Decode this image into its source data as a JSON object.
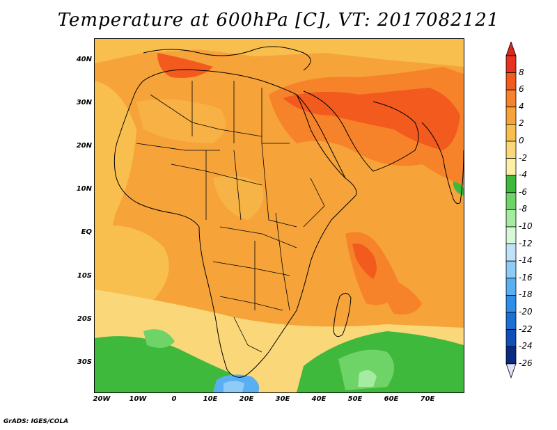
{
  "title": "Temperature at 600hPa [C], VT: 2017082121",
  "credit": "GrADS: IGES/COLA",
  "lat_labels": [
    "40N",
    "30N",
    "20N",
    "10N",
    "EQ",
    "10S",
    "20S",
    "30S"
  ],
  "lon_labels": [
    "20W",
    "10W",
    "0",
    "10E",
    "20E",
    "30E",
    "40E",
    "50E",
    "60E",
    "70E"
  ],
  "colorbar": {
    "labels": [
      "8",
      "6",
      "4",
      "2",
      "0",
      "-2",
      "-4",
      "-6",
      "-8",
      "-10",
      "-12",
      "-14",
      "-16",
      "-18",
      "-20",
      "-22",
      "-24",
      "-26"
    ],
    "colors": [
      "#e8311f",
      "#f25a1e",
      "#f6832a",
      "#f6a33a",
      "#f8bf4e",
      "#fad778",
      "#fcf0a6",
      "#3fb93c",
      "#6ed467",
      "#a6eba2",
      "#d6f8d6",
      "#bfe2fa",
      "#8ecbf7",
      "#5aaff2",
      "#2f8ee8",
      "#1c6fd6",
      "#0f4fb8",
      "#0a2a80"
    ]
  },
  "map_colors": {
    "ocean_default": "#f6a33a",
    "warm_0_2": "#f8bf4e",
    "cool_m2_0": "#fad778",
    "warm_2_4": "#f6832a",
    "hot_4_6": "#f25a1e",
    "green_m6": "#3fb93c",
    "green_m8": "#6ed467",
    "pale_green": "#a6eba2",
    "blue": "#5aaff2",
    "light_blue": "#8ecbf7"
  }
}
